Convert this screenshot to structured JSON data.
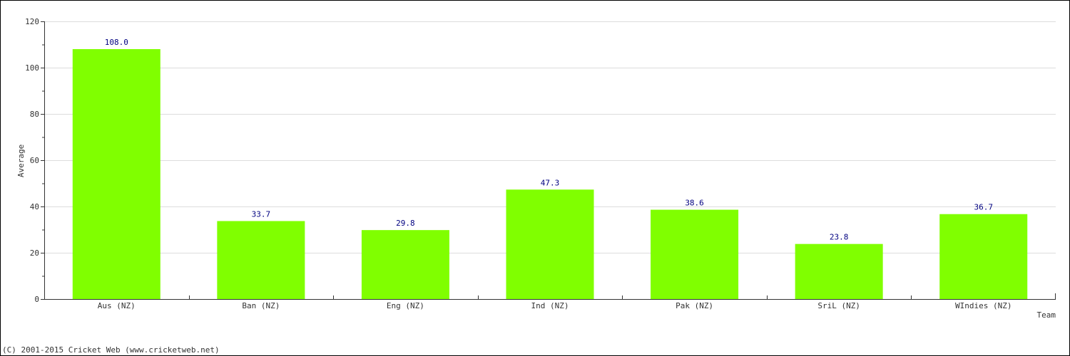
{
  "chart_data": {
    "type": "bar",
    "categories": [
      "Aus (NZ)",
      "Ban (NZ)",
      "Eng (NZ)",
      "Ind (NZ)",
      "Pak (NZ)",
      "SriL (NZ)",
      "WIndies (NZ)"
    ],
    "values": [
      108.0,
      33.7,
      29.8,
      47.3,
      38.6,
      23.8,
      36.7
    ],
    "value_labels": [
      "108.0",
      "33.7",
      "29.8",
      "47.3",
      "38.6",
      "23.8",
      "36.7"
    ],
    "title": "",
    "xlabel": "Team",
    "ylabel": "Average",
    "ylim": [
      0,
      120
    ],
    "yticks": [
      0,
      20,
      40,
      60,
      80,
      100,
      120
    ],
    "ytick_labels": [
      "0",
      "20",
      "40",
      "60",
      "80",
      "100",
      "120"
    ],
    "grid": true,
    "bar_color": "#80ff00",
    "label_color": "#000080"
  },
  "footer": {
    "copyright": "(C) 2001-2015 Cricket Web (www.cricketweb.net)"
  }
}
